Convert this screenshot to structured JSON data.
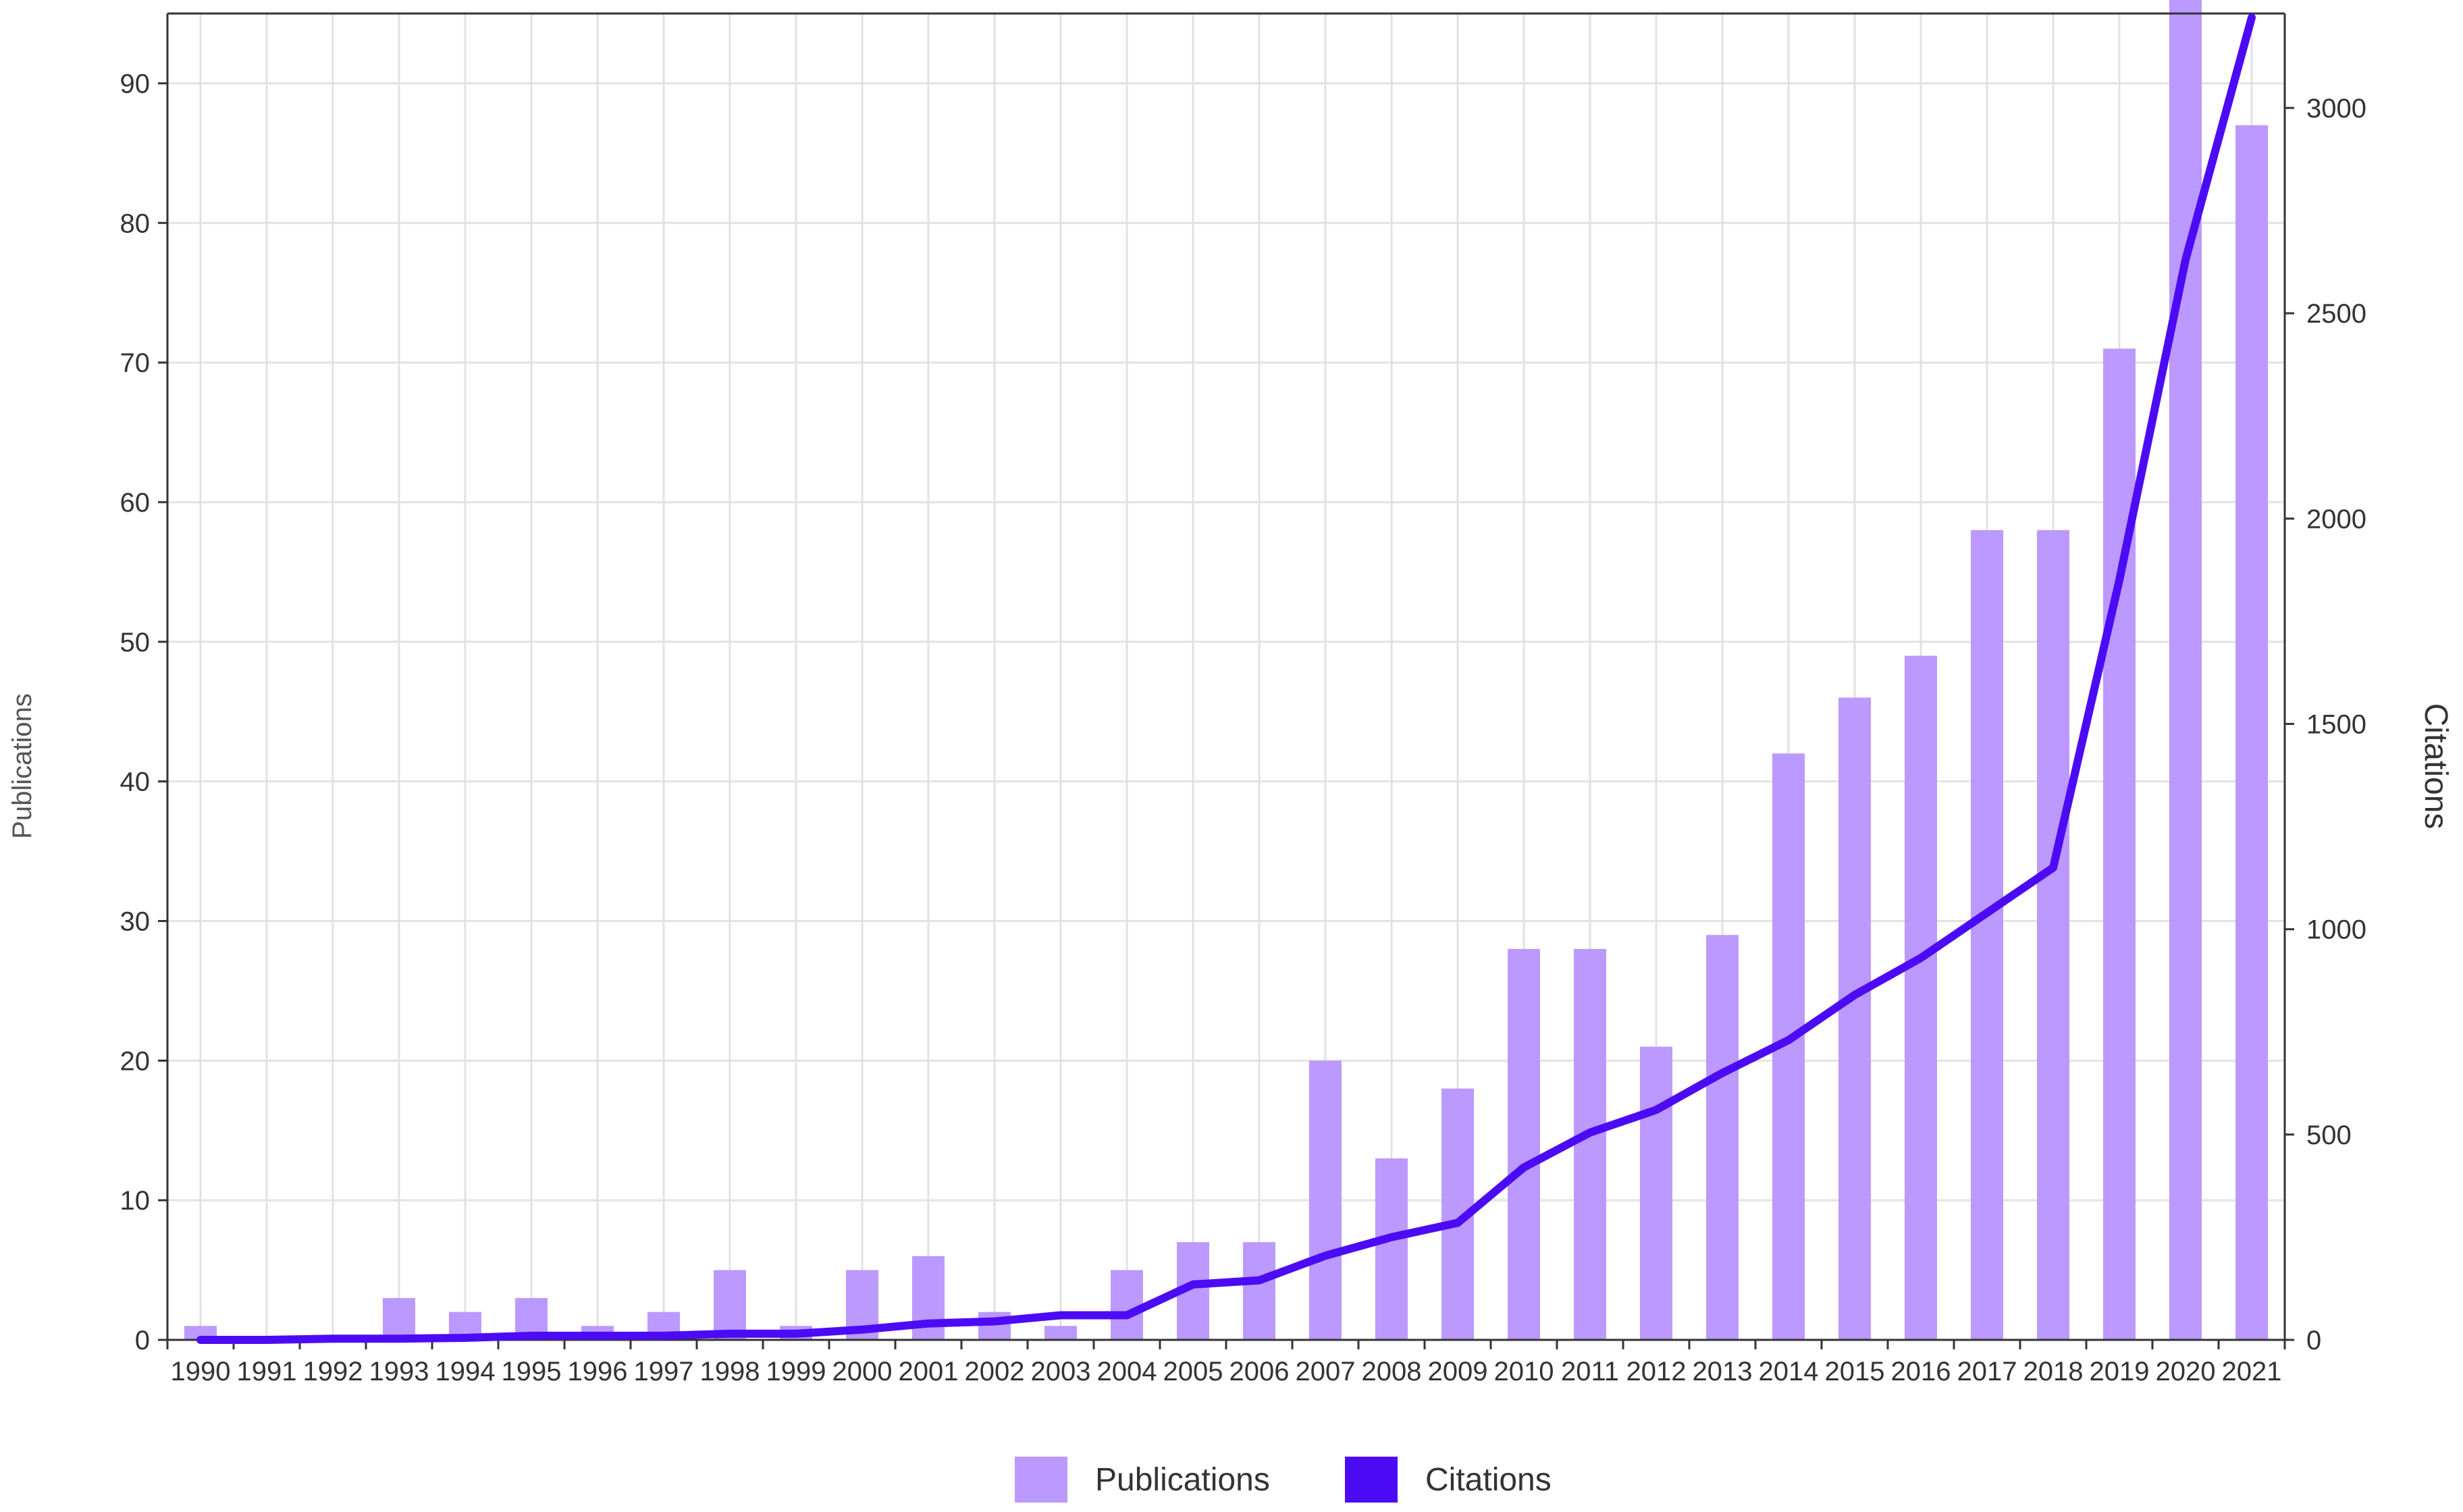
{
  "chart_data": {
    "type": "bar",
    "categories": [
      "1990",
      "1991",
      "1992",
      "1993",
      "1994",
      "1995",
      "1996",
      "1997",
      "1998",
      "1999",
      "2000",
      "2001",
      "2002",
      "2003",
      "2004",
      "2005",
      "2006",
      "2007",
      "2008",
      "2009",
      "2010",
      "2011",
      "2012",
      "2013",
      "2014",
      "2015",
      "2016",
      "2017",
      "2018",
      "2019",
      "2020",
      "2021"
    ],
    "series": [
      {
        "name": "Publications",
        "type": "bar",
        "axis": "left",
        "color": "#bb99ff",
        "values": [
          1,
          0,
          0,
          3,
          2,
          3,
          1,
          2,
          5,
          1,
          5,
          6,
          2,
          1,
          5,
          7,
          7,
          20,
          13,
          18,
          28,
          28,
          21,
          29,
          42,
          46,
          49,
          58,
          58,
          71,
          96,
          87
        ]
      },
      {
        "name": "Citations",
        "type": "line",
        "axis": "right",
        "color": "#4c0bf5",
        "values": [
          0,
          0,
          3,
          3,
          5,
          10,
          10,
          10,
          15,
          15,
          25,
          40,
          45,
          60,
          60,
          135,
          145,
          205,
          250,
          285,
          420,
          505,
          560,
          650,
          730,
          840,
          930,
          1040,
          1150,
          1850,
          2630,
          3220
        ]
      }
    ],
    "y_left": {
      "label": "Publications",
      "range": [
        0,
        95
      ],
      "ticks": [
        0,
        10,
        20,
        30,
        40,
        50,
        60,
        70,
        80,
        90
      ]
    },
    "y_right": {
      "label": "Citations",
      "range": [
        0,
        3230
      ],
      "ticks": [
        0,
        500,
        1000,
        1500,
        2000,
        2500,
        3000
      ]
    },
    "grid": true,
    "legend": {
      "position": "bottom-center",
      "items": [
        "Publications",
        "Citations"
      ]
    }
  }
}
